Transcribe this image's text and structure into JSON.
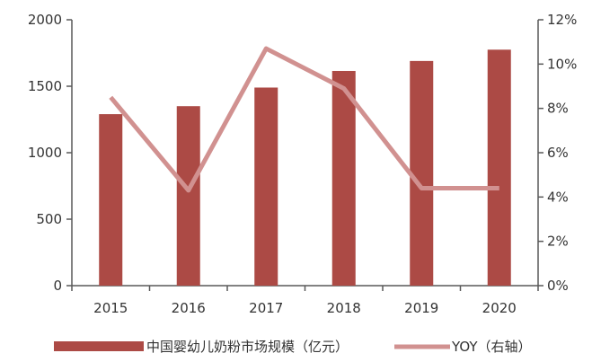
{
  "chart_data": {
    "type": "bar",
    "categories": [
      "2015",
      "2016",
      "2017",
      "2018",
      "2019",
      "2020"
    ],
    "series": [
      {
        "name": "中国婴幼儿奶粉市场规模（亿元）",
        "type": "bar",
        "axis": "left",
        "values": [
          1290,
          1350,
          1490,
          1615,
          1690,
          1775
        ],
        "color": "#ac4a45"
      },
      {
        "name": "YOY（右轴）",
        "type": "line",
        "axis": "right",
        "values": [
          8.5,
          4.3,
          10.7,
          8.9,
          4.4,
          4.4
        ],
        "unit": "%",
        "color": "#d19190"
      }
    ],
    "y_left": {
      "min": 0,
      "max": 2000,
      "ticks": [
        0,
        500,
        1000,
        1500,
        2000
      ]
    },
    "y_right": {
      "min": 0,
      "max": 12,
      "ticks": [
        "0%",
        "2%",
        "4%",
        "6%",
        "8%",
        "10%",
        "12%"
      ]
    },
    "grid": false,
    "legend_position": "bottom"
  }
}
